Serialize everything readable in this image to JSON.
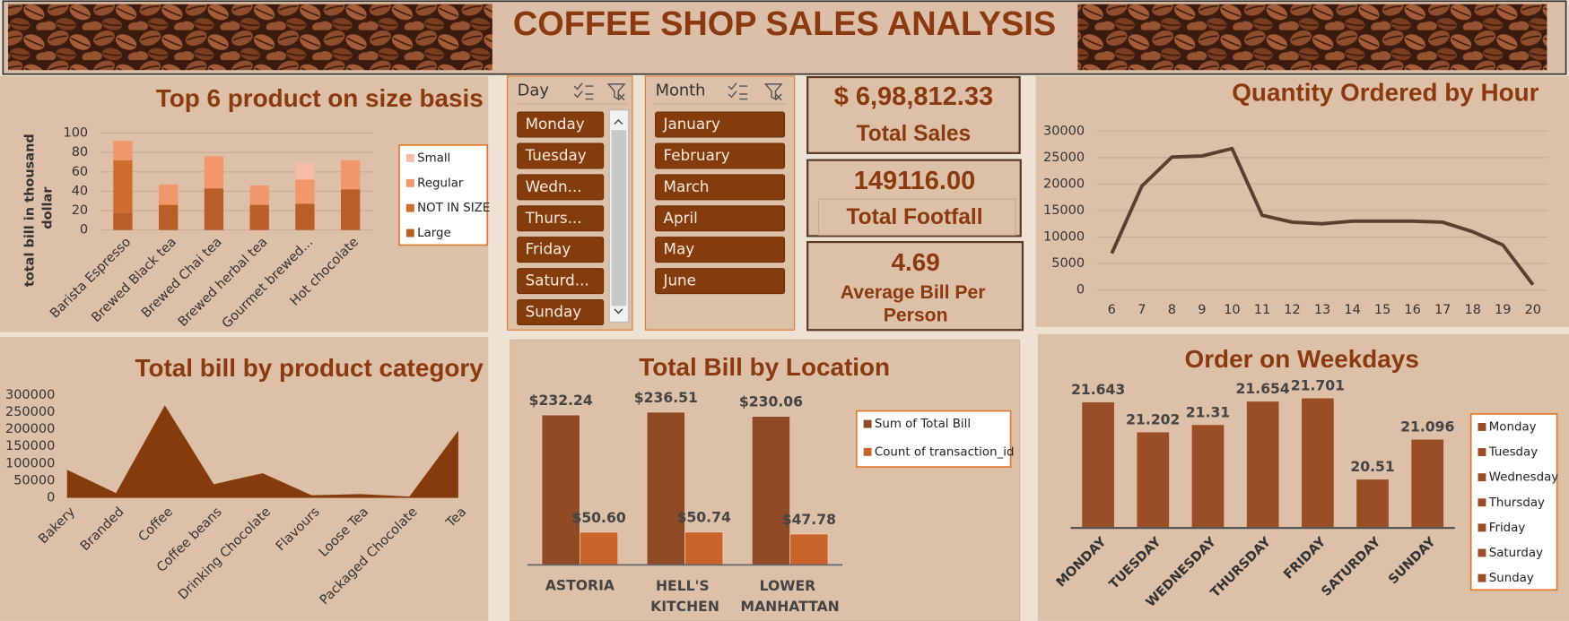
{
  "header": {
    "title": "COFFEE SHOP SALES ANALYSIS"
  },
  "slicers": [
    {
      "title": "Day",
      "items": [
        "Monday",
        "Tuesday",
        "Wedn...",
        "Thurs...",
        "Friday",
        "Saturd...",
        "Sunday"
      ]
    },
    {
      "title": "Month",
      "items": [
        "January",
        "February",
        "March",
        "April",
        "May",
        "June"
      ]
    }
  ],
  "kpis": [
    {
      "value": "$ 6,98,812.33",
      "label": "Total Sales"
    },
    {
      "value": "149116.00",
      "label": "Total Footfall"
    },
    {
      "value": "4.69",
      "label": "Average Bill Per Person"
    }
  ],
  "chart_data": [
    {
      "type": "bar",
      "stacked": true,
      "title": "Top 6 product on size basis",
      "y_label": "total bill in thousand dollar",
      "categories": [
        "Barista Espresso",
        "Brewed Black tea",
        "Brewed Chai tea",
        "Brewed herbal tea",
        "Gourmet brewed...",
        "Hot chocolate"
      ],
      "series": [
        {
          "name": "Large",
          "color": "#b95d29",
          "values": [
            18,
            26,
            43,
            26,
            27,
            42
          ]
        },
        {
          "name": "NOT IN SIZE",
          "color": "#cf6d2e",
          "values": [
            54,
            0,
            0,
            0,
            0,
            0
          ]
        },
        {
          "name": "Regular",
          "color": "#f0976c",
          "values": [
            20,
            21,
            33,
            20,
            25,
            30
          ]
        },
        {
          "name": "Small",
          "color": "#f5bca8",
          "values": [
            0,
            0,
            0,
            0,
            17,
            0
          ]
        }
      ],
      "ylim": [
        0,
        100
      ],
      "yticks": [
        0,
        20,
        40,
        60,
        80,
        100
      ],
      "grid": true,
      "legend": "right"
    },
    {
      "type": "line",
      "title": "Quantity Ordered by Hour",
      "x": [
        6,
        7,
        8,
        9,
        10,
        11,
        12,
        13,
        14,
        15,
        16,
        17,
        18,
        19,
        20
      ],
      "values": [
        6900,
        19600,
        25100,
        25300,
        26700,
        14100,
        12800,
        12500,
        13000,
        13000,
        13000,
        12800,
        11000,
        8500,
        1000
      ],
      "color": "#5b4030",
      "xlim": [
        5.5,
        20.5
      ],
      "xticks": [
        6,
        7,
        8,
        9,
        10,
        11,
        12,
        13,
        14,
        15,
        16,
        17,
        18,
        19,
        20
      ],
      "ylim": [
        0,
        30000
      ],
      "yticks": [
        0,
        5000,
        10000,
        15000,
        20000,
        25000,
        30000
      ],
      "grid": true
    },
    {
      "type": "area",
      "title": "Total bill by product category",
      "categories": [
        "Bakery",
        "Branded",
        "Coffee",
        "Coffee beans",
        "Drinking Chocolate",
        "Flavours",
        "Loose Tea",
        "Packaged Chocolate",
        "Tea"
      ],
      "values": [
        82000,
        14000,
        270000,
        40000,
        72000,
        8000,
        11000,
        4000,
        196000
      ],
      "color": "#843c0c",
      "ylim": [
        0,
        300000
      ],
      "yticks": [
        0,
        50000,
        100000,
        150000,
        200000,
        250000,
        300000
      ],
      "grid": false
    },
    {
      "type": "bar",
      "title": "Total Bill by Location",
      "categories": [
        "ASTORIA",
        "HELL'S KITCHEN",
        "LOWER MANHATTAN"
      ],
      "series": [
        {
          "name": "Sum of Total Bill",
          "color": "#8f4a26",
          "values": [
            232.24,
            236.51,
            230.06
          ],
          "value_labels": [
            "$232.24",
            "$236.51",
            "$230.06"
          ]
        },
        {
          "name": "Count of transaction_id",
          "color": "#c9652a",
          "values": [
            50.6,
            50.74,
            47.78
          ],
          "value_labels": [
            "$50.60",
            "$50.74",
            "$47.78"
          ]
        }
      ],
      "ylim": [
        0,
        250
      ],
      "legend": "right"
    },
    {
      "type": "bar",
      "title": "Order on Weekdays",
      "categories": [
        "MONDAY",
        "TUESDAY",
        "WEDNESDAY",
        "THURSDAY",
        "FRIDAY",
        "SATURDAY",
        "SUNDAY"
      ],
      "values": [
        21.643,
        21.202,
        21.31,
        21.654,
        21.701,
        20.51,
        21.096
      ],
      "color": "#9a4e25",
      "ylim": [
        19.8,
        22
      ],
      "data_labels": true,
      "legend_labels": [
        "Monday",
        "Tuesday",
        "Wednesday",
        "Thursday",
        "Friday",
        "Saturday",
        "Sunday"
      ],
      "legend": "right"
    }
  ]
}
